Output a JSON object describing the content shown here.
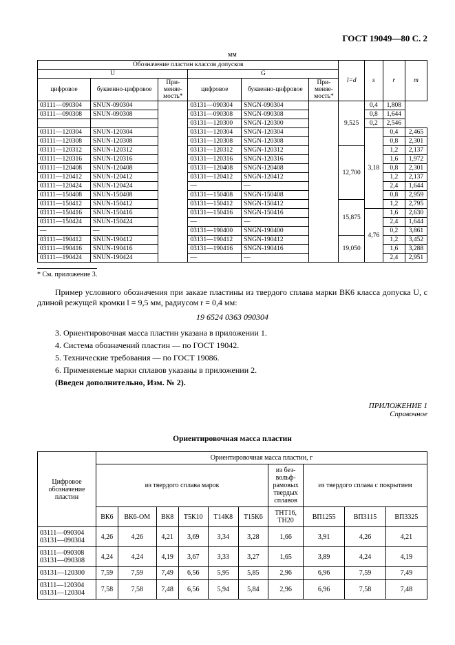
{
  "header": "ГОСТ 19049—80 С. 2",
  "unit_label": "мм",
  "table1": {
    "head": {
      "group_title": "Обозначение пластин классов допусков",
      "u": "U",
      "g": "G",
      "digital": "цифровое",
      "alpha": "буквенно-цифровое",
      "prime": "При-меняе-мость*",
      "ld": "l=d",
      "s": "s",
      "r": "r",
      "m": "m"
    },
    "rows": [
      {
        "uc": "03111—090304",
        "ua": "SNUN-090304",
        "gc": "03131—090304",
        "ga": "SNGN-090304",
        "ld": "9,525",
        "s": "",
        "r": "0,4",
        "m": "1,808"
      },
      {
        "uc": "03111—090308",
        "ua": "SNUN-090308",
        "gc": "03131—090308",
        "ga": "SNGN-090308",
        "ld": "",
        "s": "",
        "r": "0,8",
        "m": "1,644"
      },
      {
        "uc": "",
        "ua": "",
        "gc": "03131—120300",
        "ga": "SNGN-120300",
        "ld": "",
        "s": "",
        "r": "0,2",
        "m": "2,546"
      },
      {
        "uc": "03111—120304",
        "ua": "SNUN-120304",
        "gc": "03131—120304",
        "ga": "SNGN-120304",
        "ld": "",
        "s": "3,18",
        "r": "0,4",
        "m": "2,465"
      },
      {
        "uc": "03111—120308",
        "ua": "SNUN-120308",
        "gc": "03131—120308",
        "ga": "SNGN-120308",
        "ld": "",
        "s": "",
        "r": "0,8",
        "m": "2,301"
      },
      {
        "uc": "03111—120312",
        "ua": "SNUN-120312",
        "gc": "03131—120312",
        "ga": "SNGN-120312",
        "ld": "12,700",
        "s": "",
        "r": "1,2",
        "m": "2,137"
      },
      {
        "uc": "03111—120316",
        "ua": "SNUN-120316",
        "gc": "03131—120316",
        "ga": "SNGN-120316",
        "ld": "",
        "s": "",
        "r": "1,6",
        "m": "1,972"
      },
      {
        "uc": "03111—120408",
        "ua": "SNUN-120408",
        "gc": "03131—120408",
        "ga": "SNGN-120408",
        "ld": "",
        "s": "",
        "r": "0,8",
        "m": "2,301"
      },
      {
        "uc": "03111—120412",
        "ua": "SNUN-120412",
        "gc": "03131—120412",
        "ga": "SNGN-120412",
        "ld": "",
        "s": "",
        "r": "1,2",
        "m": "2,137"
      },
      {
        "uc": "03111—120424",
        "ua": "SNUN-120424",
        "gc": "—",
        "ga": "—",
        "ld": "",
        "s": "",
        "r": "2,4",
        "m": "1,644"
      },
      {
        "uc": "03111—150408",
        "ua": "SNUN-150408",
        "gc": "03131—150408",
        "ga": "SNGN-150408",
        "ld": "",
        "s": "",
        "r": "0,8",
        "m": "2,959"
      },
      {
        "uc": "03111—150412",
        "ua": "SNUN-150412",
        "gc": "03131—150412",
        "ga": "SNGN-150412",
        "ld": "15,875",
        "s": "",
        "r": "1,2",
        "m": "2,795"
      },
      {
        "uc": "03111—150416",
        "ua": "SNUN-150416",
        "gc": "03131—150416",
        "ga": "SNGN-150416",
        "ld": "",
        "s": "4,76",
        "r": "1,6",
        "m": "2,630"
      },
      {
        "uc": "03111—150424",
        "ua": "SNUN-150424",
        "gc": "—",
        "ga": "—",
        "ld": "",
        "s": "",
        "r": "2,4",
        "m": "1,644"
      },
      {
        "uc": "—",
        "ua": "—",
        "gc": "03131—190400",
        "ga": "SNGN-190400",
        "ld": "",
        "s": "",
        "r": "0,2",
        "m": "3,861"
      },
      {
        "uc": "03111—190412",
        "ua": "SNUN-190412",
        "gc": "03131—190412",
        "ga": "SNGN-190412",
        "ld": "19,050",
        "s": "",
        "r": "1,2",
        "m": "3,452"
      },
      {
        "uc": "03111—190416",
        "ua": "SNUN-190416",
        "gc": "03131—190416",
        "ga": "SNGN-190416",
        "ld": "",
        "s": "",
        "r": "1,6",
        "m": "3,288"
      },
      {
        "uc": "03111—190424",
        "ua": "SNUN-190424",
        "gc": "—",
        "ga": "—",
        "ld": "",
        "s": "",
        "r": "2,4",
        "m": "2,951"
      }
    ]
  },
  "footnote1": "* См. приложение 3.",
  "para_example": "Пример условного обозначения при заказе пластины из твердого сплава марки ВК6 класса допуска U, с длиной режущей кромки l = 9,5 мм, радиусом r = 0,4 мм:",
  "code": "19 6524 0363 090304",
  "notes": [
    "3. Ориентировочная масса пластин указана в приложении 1.",
    "4. Система обозначений пластин — по ГОСТ 19042.",
    "5. Технические требования — по ГОСТ 19086.",
    "6. Применяемые марки сплавов указаны в приложении 2."
  ],
  "added": "(Введен дополнительно, Изм. № 2).",
  "appendix": {
    "title": "ПРИЛОЖЕНИЕ 1",
    "sub": "Справочное"
  },
  "app_title": "Ориентировочная масса пластин",
  "table2": {
    "head": {
      "col1": "Цифровое обозначение пластин",
      "top": "Ориентировочная масса пластин, г",
      "hard": "из твердого сплава марок",
      "wf": "из без-вольф-рамовых твердых сплавов",
      "coated": "из твердого сплава с покрытием",
      "cols": [
        "ВК6",
        "ВК6-ОМ",
        "ВК8",
        "Т5К10",
        "Т14К8",
        "Т15К6",
        "ТНТ16, ТН20",
        "ВП1255",
        "ВП3115",
        "ВП3325"
      ]
    },
    "rows": [
      {
        "label": "03111—090304<br>03131—090304",
        "v": [
          "4,26",
          "4,26",
          "4,21",
          "3,69",
          "3,34",
          "3,28",
          "1,66",
          "3,91",
          "4,26",
          "4,21"
        ]
      },
      {
        "label": "03111—090308<br>03131—090308",
        "v": [
          "4,24",
          "4,24",
          "4,19",
          "3,67",
          "3,33",
          "3,27",
          "1,65",
          "3,89",
          "4,24",
          "4,19"
        ]
      },
      {
        "label": "03131—120300",
        "v": [
          "7,59",
          "7,59",
          "7,49",
          "6,56",
          "5,95",
          "5,85",
          "2,96",
          "6,96",
          "7,59",
          "7,49"
        ]
      },
      {
        "label": "03111—120304<br>03131—120304",
        "v": [
          "7,58",
          "7,58",
          "7,48",
          "6,56",
          "5,94",
          "5,84",
          "2,96",
          "6,96",
          "7,58",
          "7,48"
        ]
      }
    ]
  }
}
